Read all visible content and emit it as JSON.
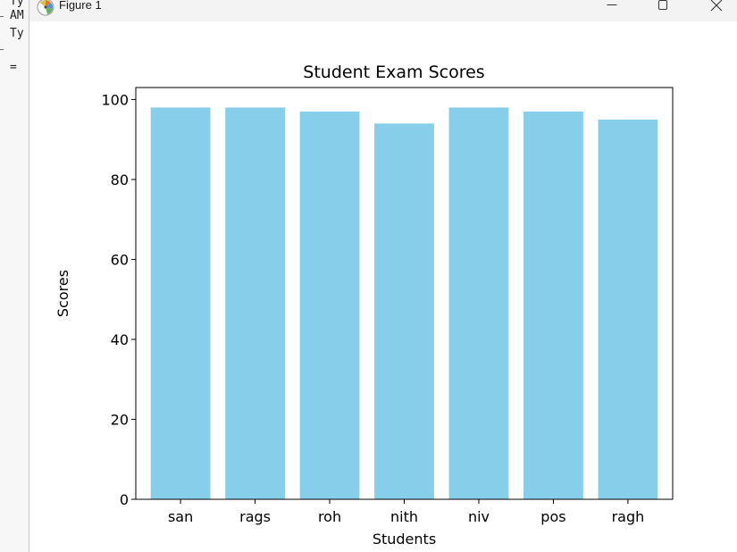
{
  "console": {
    "lines": [
      "Ty",
      "AM",
      "Ty",
      "="
    ]
  },
  "window": {
    "title": "Figure 1",
    "icon": "matplotlib-figure-icon",
    "controls": [
      "minimize-icon",
      "maximize-icon",
      "close-icon"
    ]
  },
  "chart_data": {
    "type": "bar",
    "title": "Student Exam Scores",
    "xlabel": "Students",
    "ylabel": "Scores",
    "categories": [
      "san",
      "rags",
      "roh",
      "nith",
      "niv",
      "pos",
      "ragh"
    ],
    "values": [
      98,
      98,
      97,
      94,
      98,
      97,
      95
    ],
    "ylim": [
      0,
      103
    ],
    "yticks": [
      0,
      20,
      40,
      60,
      80,
      100
    ],
    "bar_color": "#87ceeb",
    "grid": false
  }
}
